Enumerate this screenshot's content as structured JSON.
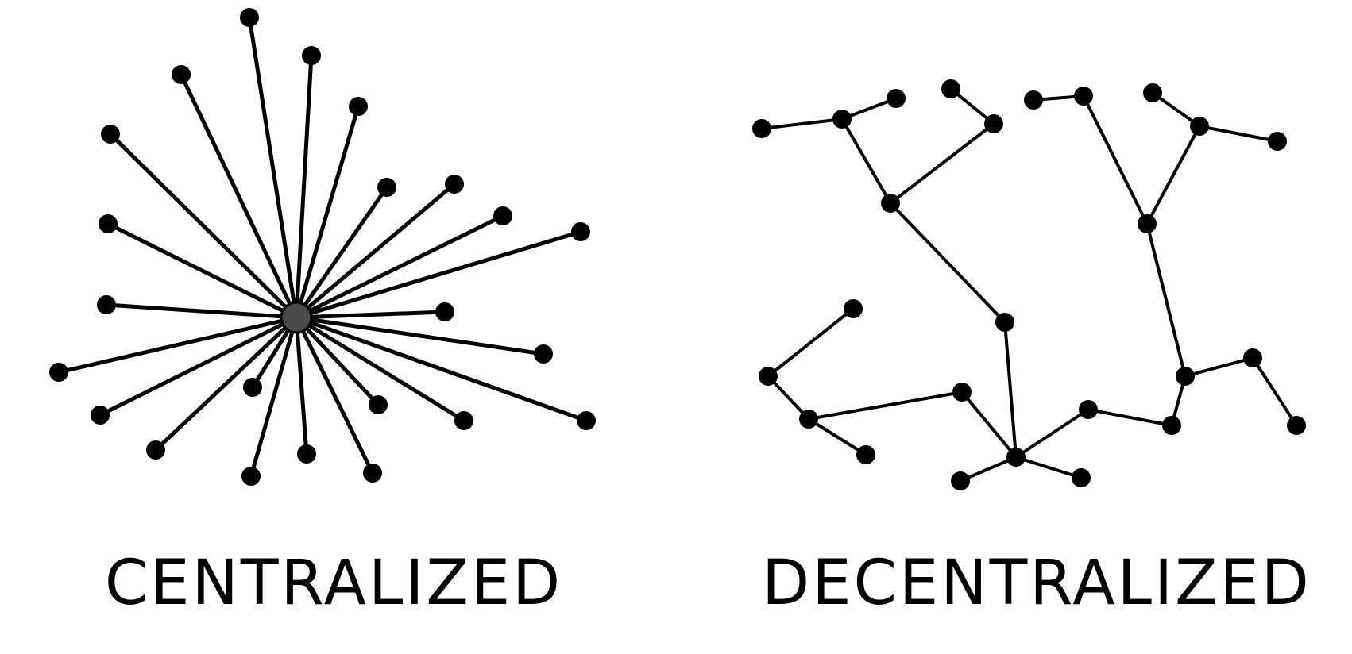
{
  "captions": {
    "left": "CENTRALIZED",
    "right": "DECENTRALIZED"
  },
  "colors": {
    "line": "#000000",
    "node": "#000000",
    "hub": "#4a4a4a",
    "background": "#ffffff"
  }
}
